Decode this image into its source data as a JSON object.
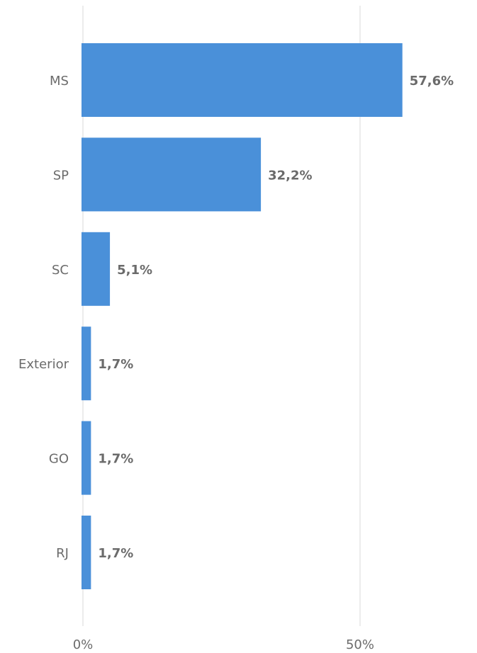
{
  "chart_data": {
    "type": "bar",
    "orientation": "horizontal",
    "categories": [
      "MS",
      "SP",
      "SC",
      "Exterior",
      "GO",
      "RJ"
    ],
    "values": [
      57.6,
      32.2,
      5.1,
      1.7,
      1.7,
      1.7
    ],
    "value_labels": [
      "57,6%",
      "32,2%",
      "5,1%",
      "1,7%",
      "1,7%",
      "1,7%"
    ],
    "x_ticks": [
      {
        "value": 0,
        "label": "0%"
      },
      {
        "value": 50,
        "label": "50%"
      }
    ],
    "xlim": [
      0,
      72
    ],
    "grid": true,
    "bar_color": "#4a90d9",
    "title": "",
    "xlabel": "",
    "ylabel": ""
  }
}
